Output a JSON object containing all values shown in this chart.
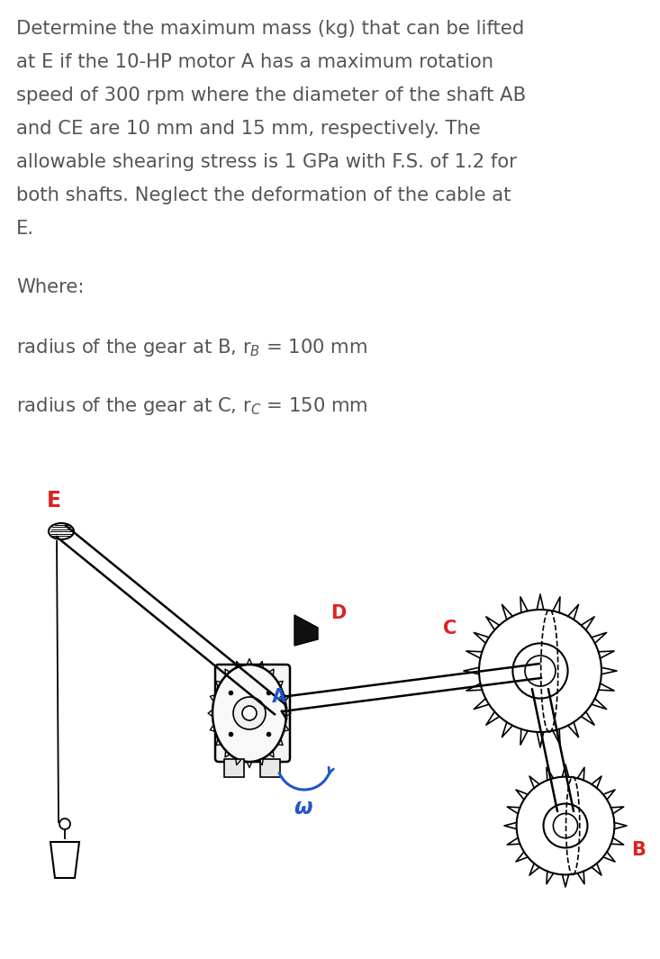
{
  "background_color": "#ffffff",
  "text_color": "#555555",
  "red_color": "#dd2222",
  "blue_color": "#2255cc",
  "dark_color": "#111111",
  "line1": "Determine the maximum mass (kg) that can be lifted",
  "line2": "at E if the 10-HP motor A has a maximum rotation",
  "line3": "speed of 300 rpm where the diameter of the shaft AB",
  "line4": "and CE are 10 mm and 15 mm, respectively. The",
  "line5": "allowable shearing stress is 1 GPa with F.S. of 1.2 for",
  "line6": "both shafts. Neglect the deformation of the cable at",
  "line7": "E.",
  "where_label": "Where:",
  "gear_b_text": "radius of the gear at B, r$_{B}$ = 100 mm",
  "gear_c_text": "radius of the gear at C, r$_{C}$ = 150 mm",
  "label_E": "E",
  "label_D": "D",
  "label_A": "A",
  "label_omega": "ω",
  "label_C": "C",
  "label_B": "B",
  "fig_width": 7.33,
  "fig_height": 10.65,
  "dpi": 100
}
